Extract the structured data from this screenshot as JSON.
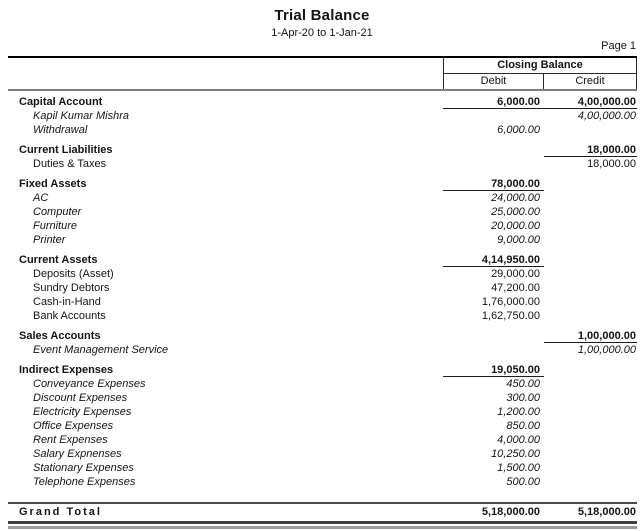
{
  "report": {
    "title": "Trial Balance",
    "period": "1-Apr-20 to 1-Jan-21",
    "page_label": "Page 1",
    "columns": {
      "group_header": "Closing Balance",
      "debit": "Debit",
      "credit": "Credit"
    },
    "rows": [
      {
        "label": "Capital Account",
        "debit": "6,000.00",
        "credit": "4,00,000.00",
        "style": "group"
      },
      {
        "label": "Kapil Kumar Mishra",
        "debit": "",
        "credit": "4,00,000.00",
        "style": "italic"
      },
      {
        "label": "Withdrawal",
        "debit": "6,000.00",
        "credit": "",
        "style": "italic"
      },
      {
        "label": "Current Liabilities",
        "debit": "",
        "credit": "18,000.00",
        "style": "group"
      },
      {
        "label": "Duties & Taxes",
        "debit": "",
        "credit": "18,000.00",
        "style": "plain"
      },
      {
        "label": "Fixed Assets",
        "debit": "78,000.00",
        "credit": "",
        "style": "group"
      },
      {
        "label": "AC",
        "debit": "24,000.00",
        "credit": "",
        "style": "italic"
      },
      {
        "label": "Computer",
        "debit": "25,000.00",
        "credit": "",
        "style": "italic"
      },
      {
        "label": "Furniture",
        "debit": "20,000.00",
        "credit": "",
        "style": "italic"
      },
      {
        "label": "Printer",
        "debit": "9,000.00",
        "credit": "",
        "style": "italic"
      },
      {
        "label": "Current Assets",
        "debit": "4,14,950.00",
        "credit": "",
        "style": "group"
      },
      {
        "label": "Deposits (Asset)",
        "debit": "29,000.00",
        "credit": "",
        "style": "plain"
      },
      {
        "label": "Sundry Debtors",
        "debit": "47,200.00",
        "credit": "",
        "style": "plain"
      },
      {
        "label": "Cash-in-Hand",
        "debit": "1,76,000.00",
        "credit": "",
        "style": "plain"
      },
      {
        "label": "Bank Accounts",
        "debit": "1,62,750.00",
        "credit": "",
        "style": "plain"
      },
      {
        "label": "Sales Accounts",
        "debit": "",
        "credit": "1,00,000.00",
        "style": "group"
      },
      {
        "label": "Event Management Service",
        "debit": "",
        "credit": "1,00,000.00",
        "style": "italic"
      },
      {
        "label": "Indirect Expenses",
        "debit": "19,050.00",
        "credit": "",
        "style": "group"
      },
      {
        "label": "Conveyance Expenses",
        "debit": "450.00",
        "credit": "",
        "style": "italic"
      },
      {
        "label": "Discount Expenses",
        "debit": "300.00",
        "credit": "",
        "style": "italic"
      },
      {
        "label": "Electricity Expenses",
        "debit": "1,200.00",
        "credit": "",
        "style": "italic"
      },
      {
        "label": "Office Expenses",
        "debit": "850.00",
        "credit": "",
        "style": "italic"
      },
      {
        "label": "Rent Expenses",
        "debit": "4,000.00",
        "credit": "",
        "style": "italic"
      },
      {
        "label": "Salary Expnenses",
        "debit": "10,250.00",
        "credit": "",
        "style": "italic"
      },
      {
        "label": "Stationary Expenses",
        "debit": "1,500.00",
        "credit": "",
        "style": "italic"
      },
      {
        "label": "Telephone Expenses",
        "debit": "500.00",
        "credit": "",
        "style": "italic"
      }
    ],
    "grand_total": {
      "label": "Grand Total",
      "debit": "5,18,000.00",
      "credit": "5,18,000.00"
    },
    "colors": {
      "text": "#141414",
      "rule_dark": "#000000",
      "rule_gray": "#7e7e7e"
    }
  }
}
